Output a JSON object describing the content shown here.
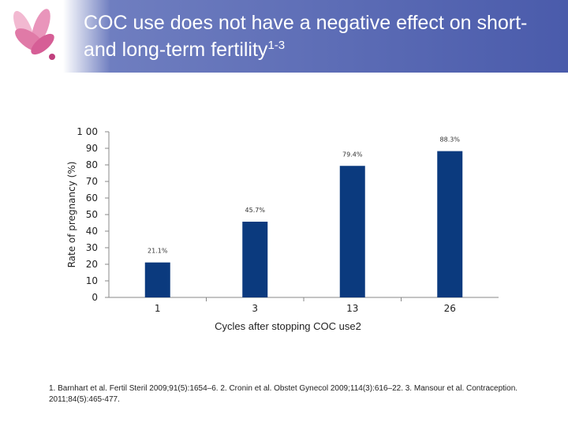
{
  "slide": {
    "title_main": "COC use does not have a negative effect on short-and long-term fertility",
    "title_sup": "1-3",
    "footer": "1. Barnhart et al. Fertil Steril 2009;91(5):1654–6. 2. Cronin et al. Obstet Gynecol 2009;114(3):616–22. 3. Mansour et al. Contraception. 2011;84(5):465-477."
  },
  "colors": {
    "header_accent": "#4a5bab",
    "bar": "#0b3a7e",
    "logo_pink": "#e07aa7",
    "logo_dark": "#c03f7d"
  },
  "chart_data": {
    "type": "bar",
    "title": "",
    "ylabel": "Rate of pregnancy (%)",
    "xlabel": "Cycles after stopping COC use2",
    "ylim": [
      0,
      100
    ],
    "yticks": [
      "1 00",
      "90",
      "80",
      "70",
      "60",
      "50",
      "40",
      "30",
      "20",
      "10",
      "0"
    ],
    "categories": [
      "1",
      "3",
      "13",
      "26"
    ],
    "values": [
      21.1,
      45.7,
      79.4,
      88.3
    ],
    "data_labels": [
      "21.1%",
      "45.7%",
      "79.4%",
      "88.3%"
    ],
    "grid": false,
    "legend": "none"
  }
}
